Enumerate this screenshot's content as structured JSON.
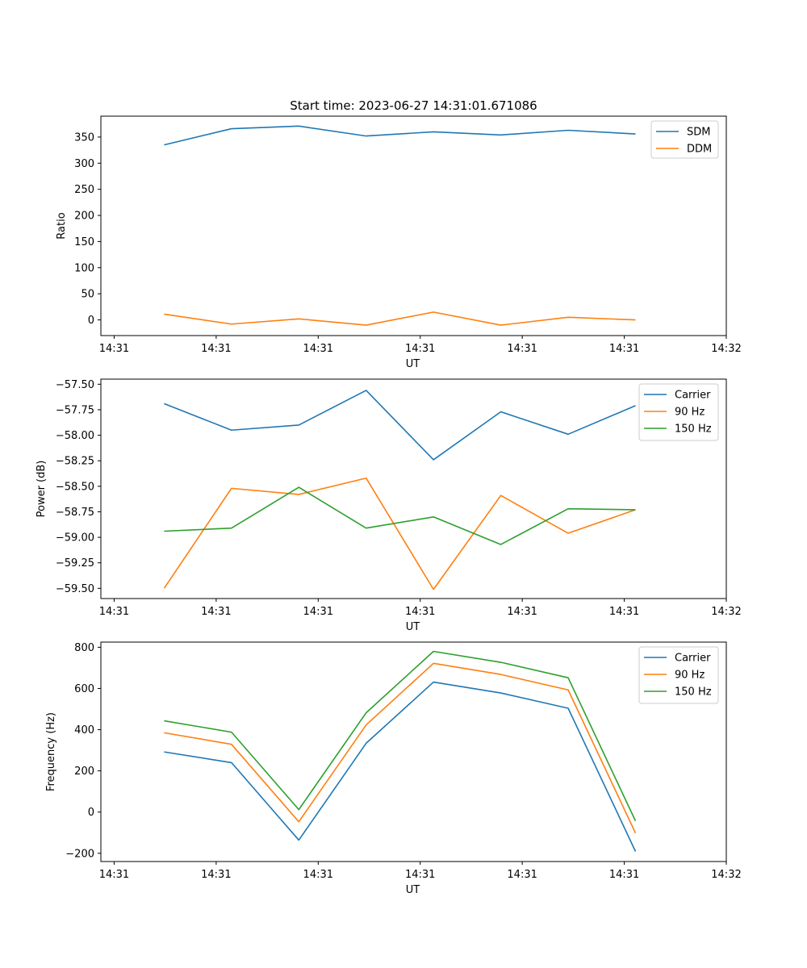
{
  "title": "Start time: 2023-06-27 14:31:01.671086",
  "colors": {
    "blue": "#1f77b4",
    "orange": "#ff7f0e",
    "green": "#2ca02c"
  },
  "chart_data": [
    {
      "type": "line",
      "title": "Start time: 2023-06-27 14:31:01.671086",
      "xlabel": "UT",
      "ylabel": "Ratio",
      "x_tick_labels": [
        "14:31",
        "14:31",
        "14:31",
        "14:31",
        "14:31",
        "14:31",
        "14:32"
      ],
      "ylim": [
        -30,
        390
      ],
      "yticks": [
        0,
        50,
        100,
        150,
        200,
        250,
        300,
        350
      ],
      "legend": "top-right",
      "series": [
        {
          "name": "SDM",
          "color": "#1f77b4",
          "values": [
            335,
            366,
            371,
            352,
            360,
            354,
            363,
            356
          ]
        },
        {
          "name": "DDM",
          "color": "#ff7f0e",
          "values": [
            11,
            -8,
            2,
            -10,
            15,
            -10,
            5,
            0
          ]
        }
      ]
    },
    {
      "type": "line",
      "title": "",
      "xlabel": "UT",
      "ylabel": "Power (dB)",
      "x_tick_labels": [
        "14:31",
        "14:31",
        "14:31",
        "14:31",
        "14:31",
        "14:31",
        "14:32"
      ],
      "ylim": [
        -59.6,
        -57.45
      ],
      "yticks": [
        -57.5,
        -57.75,
        -58.0,
        -58.25,
        -58.5,
        -58.75,
        -59.0,
        -59.25,
        -59.5
      ],
      "ytick_labels": [
        "−57.50",
        "−57.75",
        "−58.00",
        "−58.25",
        "−58.50",
        "−58.75",
        "−59.00",
        "−59.25",
        "−59.50"
      ],
      "legend": "top-right",
      "series": [
        {
          "name": "Carrier",
          "color": "#1f77b4",
          "values": [
            -57.69,
            -57.95,
            -57.9,
            -57.56,
            -58.24,
            -57.77,
            -57.99,
            -57.71
          ]
        },
        {
          "name": "90 Hz",
          "color": "#ff7f0e",
          "values": [
            -59.5,
            -58.52,
            -58.58,
            -58.42,
            -59.51,
            -58.59,
            -58.96,
            -58.73
          ]
        },
        {
          "name": "150 Hz",
          "color": "#2ca02c",
          "values": [
            -58.94,
            -58.91,
            -58.51,
            -58.91,
            -58.8,
            -59.07,
            -58.72,
            -58.73
          ]
        }
      ]
    },
    {
      "type": "line",
      "title": "",
      "xlabel": "UT",
      "ylabel": "Frequency (Hz)",
      "x_tick_labels": [
        "14:31",
        "14:31",
        "14:31",
        "14:31",
        "14:31",
        "14:31",
        "14:32"
      ],
      "ylim": [
        -240,
        825
      ],
      "yticks": [
        -200,
        0,
        200,
        400,
        600,
        800
      ],
      "ytick_labels": [
        "−200",
        "0",
        "200",
        "400",
        "600",
        "800"
      ],
      "legend": "top-right",
      "series": [
        {
          "name": "Carrier",
          "color": "#1f77b4",
          "values": [
            292,
            240,
            -136,
            334,
            631,
            578,
            504,
            -191
          ]
        },
        {
          "name": "90 Hz",
          "color": "#ff7f0e",
          "values": [
            385,
            329,
            -47,
            423,
            722,
            668,
            593,
            -102
          ]
        },
        {
          "name": "150 Hz",
          "color": "#2ca02c",
          "values": [
            443,
            388,
            12,
            482,
            780,
            727,
            652,
            -43
          ]
        }
      ]
    }
  ]
}
